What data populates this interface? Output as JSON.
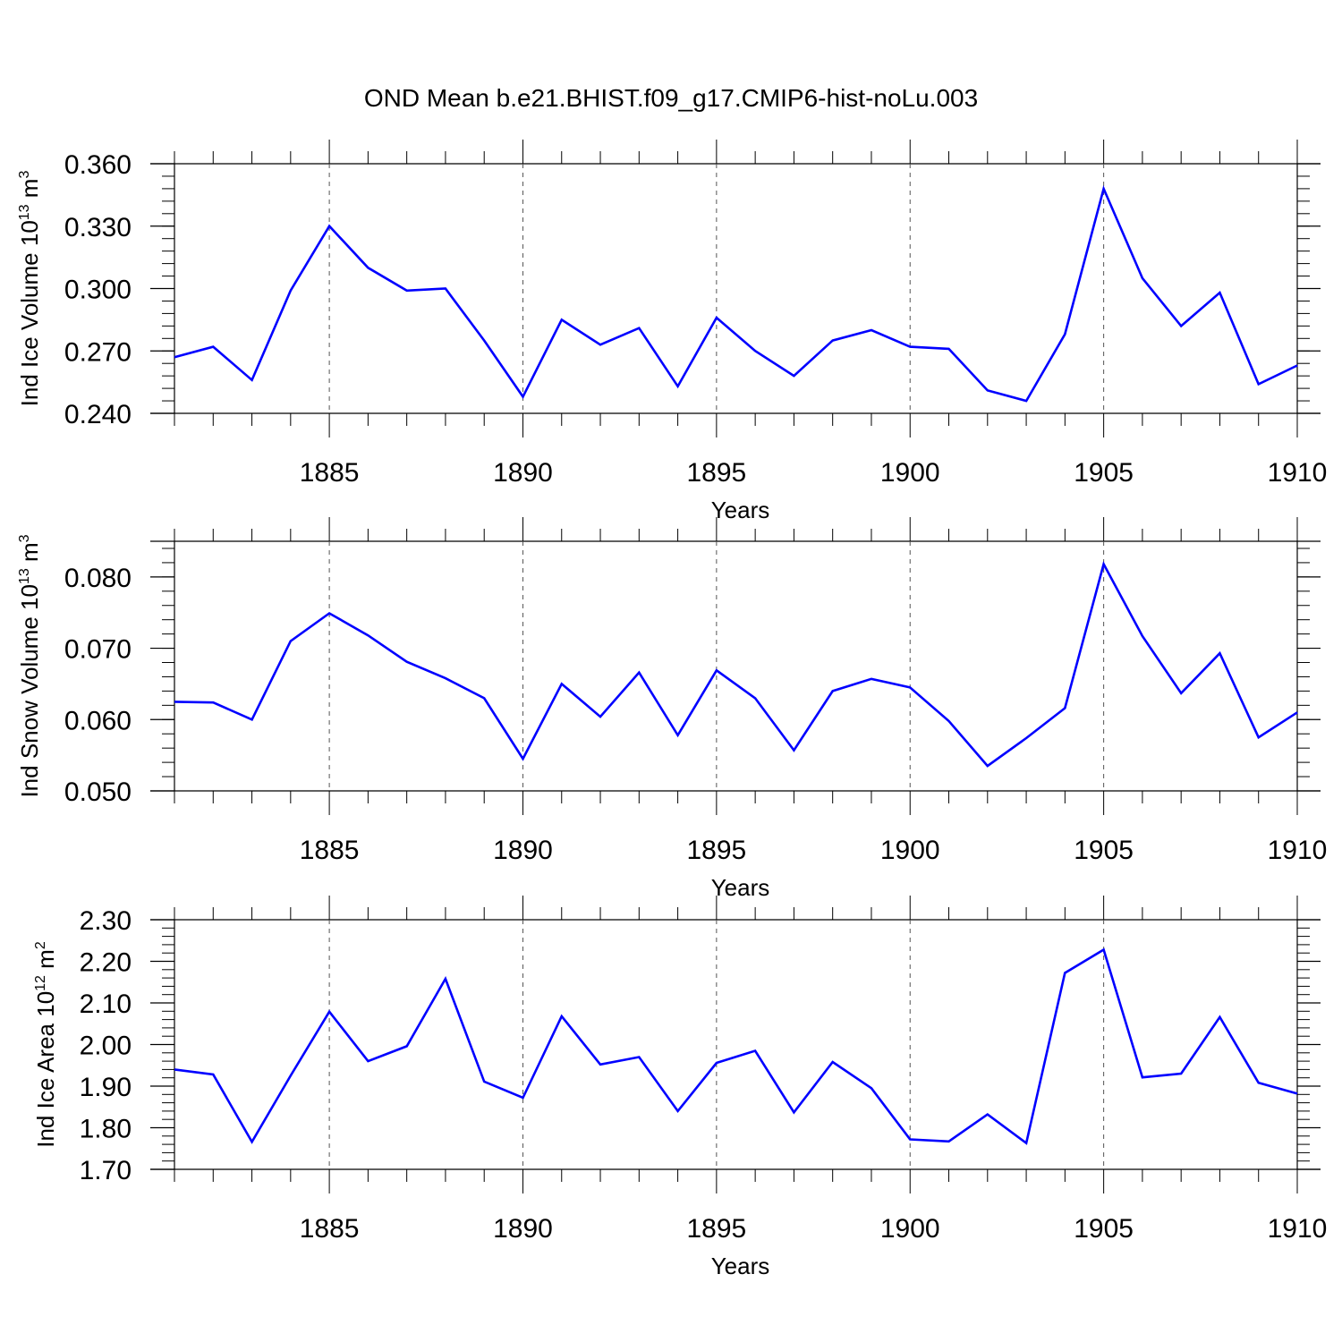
{
  "title": "OND Mean b.e21.BHIST.f09_g17.CMIP6-hist-noLu.003",
  "chart_data": [
    {
      "type": "line",
      "ylabel": {
        "base": "Ind Ice Volume 10",
        "exponent": "13",
        "unit": " m",
        "unit_exponent": "3"
      },
      "xlabel": "Years",
      "xlim": [
        1881,
        1910
      ],
      "ylim": [
        0.24,
        0.36
      ],
      "x_ticks": [
        "1885",
        "1890",
        "1895",
        "1900",
        "1905",
        "1910"
      ],
      "y_ticks": [
        "0.240",
        "0.270",
        "0.300",
        "0.330",
        "0.360"
      ],
      "y_tick_values": [
        0.24,
        0.27,
        0.3,
        0.33,
        0.36
      ],
      "line_color": "#0000ff",
      "series": [
        {
          "name": "Ind Ice Volume",
          "x": [
            1881,
            1882,
            1883,
            1884,
            1885,
            1886,
            1887,
            1888,
            1889,
            1890,
            1891,
            1892,
            1893,
            1894,
            1895,
            1896,
            1897,
            1898,
            1899,
            1900,
            1901,
            1902,
            1903,
            1904,
            1905,
            1906,
            1907,
            1908,
            1909,
            1910
          ],
          "values": [
            0.267,
            0.272,
            0.256,
            0.299,
            0.33,
            0.31,
            0.299,
            0.3,
            0.275,
            0.248,
            0.285,
            0.273,
            0.281,
            0.253,
            0.286,
            0.27,
            0.258,
            0.275,
            0.28,
            0.272,
            0.271,
            0.251,
            0.246,
            0.278,
            0.348,
            0.305,
            0.282,
            0.298,
            0.254,
            0.263
          ]
        }
      ]
    },
    {
      "type": "line",
      "ylabel": {
        "base": "Ind Snow Volume 10",
        "exponent": "13",
        "unit": " m",
        "unit_exponent": "3"
      },
      "xlabel": "Years",
      "xlim": [
        1881,
        1910
      ],
      "ylim": [
        0.05,
        0.085
      ],
      "x_ticks": [
        "1885",
        "1890",
        "1895",
        "1900",
        "1905",
        "1910"
      ],
      "y_ticks": [
        "0.050",
        "0.060",
        "0.070",
        "0.080"
      ],
      "y_tick_values": [
        0.05,
        0.06,
        0.07,
        0.08
      ],
      "line_color": "#0000ff",
      "series": [
        {
          "name": "Ind Snow Volume",
          "x": [
            1881,
            1882,
            1883,
            1884,
            1885,
            1886,
            1887,
            1888,
            1889,
            1890,
            1891,
            1892,
            1893,
            1894,
            1895,
            1896,
            1897,
            1898,
            1899,
            1900,
            1901,
            1902,
            1903,
            1904,
            1905,
            1906,
            1907,
            1908,
            1909,
            1910
          ],
          "values": [
            0.0625,
            0.0624,
            0.06,
            0.071,
            0.0749,
            0.0718,
            0.0681,
            0.0658,
            0.063,
            0.0545,
            0.065,
            0.0604,
            0.0666,
            0.0578,
            0.0669,
            0.063,
            0.0557,
            0.064,
            0.0657,
            0.0645,
            0.0598,
            0.0535,
            0.0574,
            0.0616,
            0.0818,
            0.0717,
            0.0637,
            0.0693,
            0.0575,
            0.061
          ]
        }
      ]
    },
    {
      "type": "line",
      "ylabel": {
        "base": "Ind Ice Area 10",
        "exponent": "12",
        "unit": " m",
        "unit_exponent": "2"
      },
      "xlabel": "Years",
      "xlim": [
        1881,
        1910
      ],
      "ylim": [
        1.7,
        2.3
      ],
      "x_ticks": [
        "1885",
        "1890",
        "1895",
        "1900",
        "1905",
        "1910"
      ],
      "y_ticks": [
        "1.70",
        "1.80",
        "1.90",
        "2.00",
        "2.10",
        "2.20",
        "2.30"
      ],
      "y_tick_values": [
        1.7,
        1.8,
        1.9,
        2.0,
        2.1,
        2.2,
        2.3
      ],
      "line_color": "#0000ff",
      "series": [
        {
          "name": "Ind Ice Area",
          "x": [
            1881,
            1882,
            1883,
            1884,
            1885,
            1886,
            1887,
            1888,
            1889,
            1890,
            1891,
            1892,
            1893,
            1894,
            1895,
            1896,
            1897,
            1898,
            1899,
            1900,
            1901,
            1902,
            1903,
            1904,
            1905,
            1906,
            1907,
            1908,
            1909,
            1910
          ],
          "values": [
            1.94,
            1.928,
            1.766,
            1.925,
            2.079,
            1.96,
            1.996,
            2.158,
            1.911,
            1.872,
            2.068,
            1.952,
            1.97,
            1.84,
            1.956,
            1.985,
            1.837,
            1.958,
            1.895,
            1.772,
            1.767,
            1.832,
            1.763,
            2.172,
            2.228,
            1.921,
            1.93,
            2.066,
            1.908,
            1.882
          ]
        }
      ]
    }
  ]
}
